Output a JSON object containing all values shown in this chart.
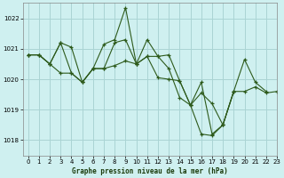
{
  "title": "Graphe pression niveau de la mer (hPa)",
  "background_color": "#cff0f0",
  "grid_color": "#aad4d4",
  "line_color": "#2d5a1b",
  "marker_color": "#2d5a1b",
  "xlim": [
    -0.5,
    23
  ],
  "ylim": [
    1017.5,
    1022.5
  ],
  "yticks": [
    1018,
    1019,
    1020,
    1021,
    1022
  ],
  "xticks": [
    0,
    1,
    2,
    3,
    4,
    5,
    6,
    7,
    8,
    9,
    10,
    11,
    12,
    13,
    14,
    15,
    16,
    17,
    18,
    19,
    20,
    21,
    22,
    23
  ],
  "series": [
    [
      1020.8,
      1020.8,
      1020.5,
      1021.2,
      1021.05,
      1019.9,
      1020.35,
      1021.15,
      1021.3,
      1022.35,
      1020.5,
      1021.3,
      1020.75,
      1020.8,
      1019.95,
      1019.15,
      1019.9,
      1018.2,
      1018.5,
      1019.6,
      1020.65,
      1019.9,
      1019.6,
      null
    ],
    [
      1020.8,
      1020.8,
      1020.5,
      1021.2,
      1020.2,
      1019.9,
      1020.35,
      1020.35,
      1021.2,
      1021.3,
      1020.5,
      1020.75,
      1020.75,
      1020.35,
      1019.4,
      1019.15,
      1018.2,
      1018.15,
      1018.5,
      1019.6,
      null,
      null,
      null,
      null
    ],
    [
      1020.8,
      1020.8,
      1020.5,
      1020.2,
      1020.2,
      1019.9,
      1020.35,
      1020.35,
      1020.45,
      1020.6,
      1020.5,
      1020.75,
      1020.05,
      1020.0,
      1019.95,
      1019.15,
      1019.55,
      1019.2,
      1018.5,
      1019.6,
      1019.6,
      1019.75,
      1019.55,
      1019.6
    ]
  ]
}
